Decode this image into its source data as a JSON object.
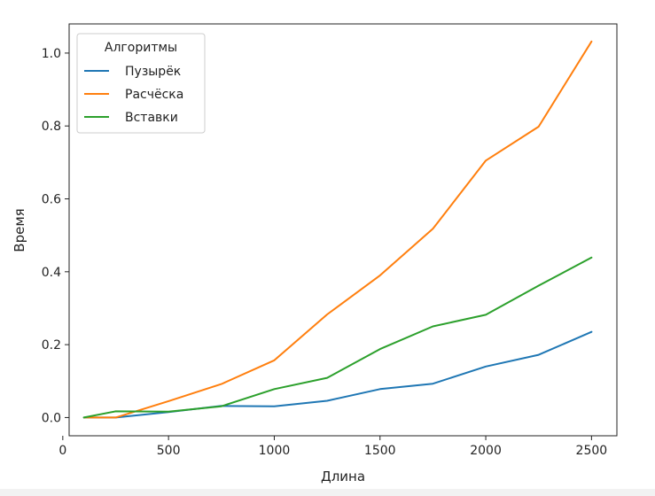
{
  "chart_data": {
    "type": "line",
    "xlabel": "Длина",
    "ylabel": "Время",
    "xlim": [
      30,
      2620
    ],
    "ylim": [
      -0.05,
      1.08
    ],
    "xticks": [
      0,
      500,
      1000,
      1500,
      2000,
      2500
    ],
    "yticks": [
      0.0,
      0.2,
      0.4,
      0.6,
      0.8,
      1.0
    ],
    "grid": false,
    "legend": {
      "title": "Алгоритмы",
      "position": "top-left"
    },
    "x": [
      100,
      250,
      500,
      750,
      1000,
      1250,
      1500,
      1750,
      2000,
      2250,
      2500
    ],
    "series": [
      {
        "name": "Пузырёк",
        "color": "#1f77b4",
        "values": [
          0.0,
          0.0,
          0.015,
          0.032,
          0.031,
          0.046,
          0.078,
          0.093,
          0.14,
          0.172,
          0.235
        ]
      },
      {
        "name": "Расчёска",
        "color": "#ff7f0e",
        "values": [
          0.0,
          0.0,
          0.045,
          0.092,
          0.157,
          0.283,
          0.39,
          0.518,
          0.705,
          0.798,
          1.032
        ]
      },
      {
        "name": "Вставки",
        "color": "#2ca02c",
        "values": [
          0.0,
          0.017,
          0.016,
          0.031,
          0.078,
          0.109,
          0.188,
          0.25,
          0.282,
          0.362,
          0.439
        ]
      }
    ]
  }
}
